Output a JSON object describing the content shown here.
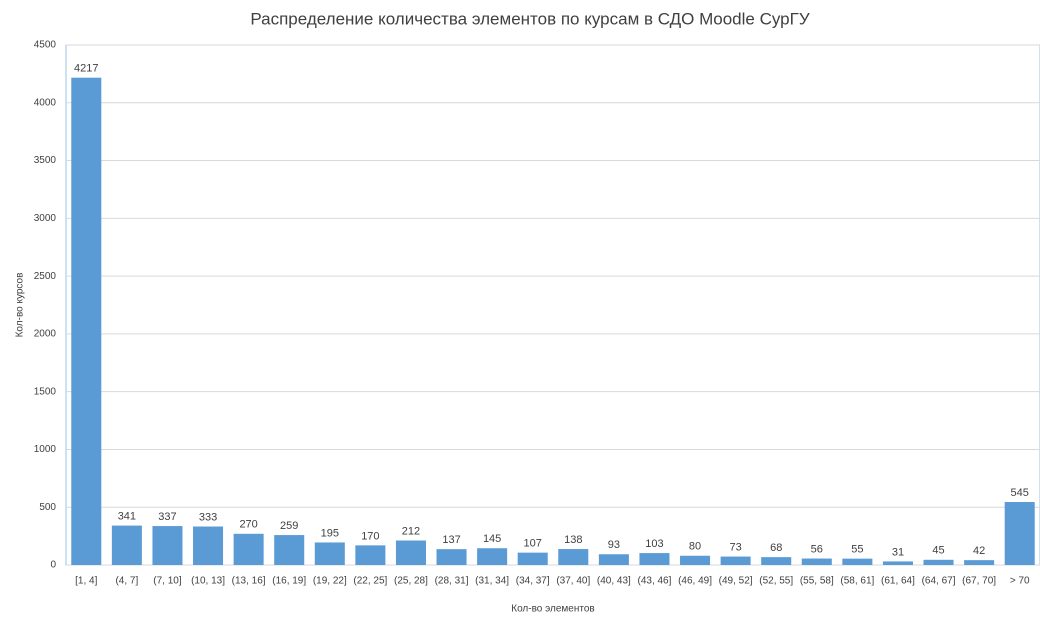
{
  "chart_data": {
    "type": "bar",
    "title": "Распределение количества элементов по курсам в СДО Moodle СурГУ",
    "x_label": "Кол-во элементов",
    "y_label": "Кол-во курсов",
    "categories": [
      "[1, 4]",
      "(4, 7]",
      "(7, 10]",
      "(10, 13]",
      "(13, 16]",
      "(16, 19]",
      "(19, 22]",
      "(22, 25]",
      "(25, 28]",
      "(28, 31]",
      "(31, 34]",
      "(34, 37]",
      "(37, 40]",
      "(40, 43]",
      "(43, 46]",
      "(46, 49]",
      "(49, 52]",
      "(52, 55]",
      "(55, 58]",
      "(58, 61]",
      "(61, 64]",
      "(64, 67]",
      "(67, 70]",
      "> 70"
    ],
    "values": [
      4217,
      341,
      337,
      333,
      270,
      259,
      195,
      170,
      212,
      137,
      145,
      107,
      138,
      93,
      103,
      80,
      73,
      68,
      56,
      55,
      31,
      45,
      42,
      545
    ],
    "color": "#5b9bd5",
    "ylim": [
      0,
      4500
    ],
    "yticks": [
      0,
      500,
      1000,
      1500,
      2000,
      2500,
      3000,
      3500,
      4000,
      4500
    ],
    "grid": true
  }
}
